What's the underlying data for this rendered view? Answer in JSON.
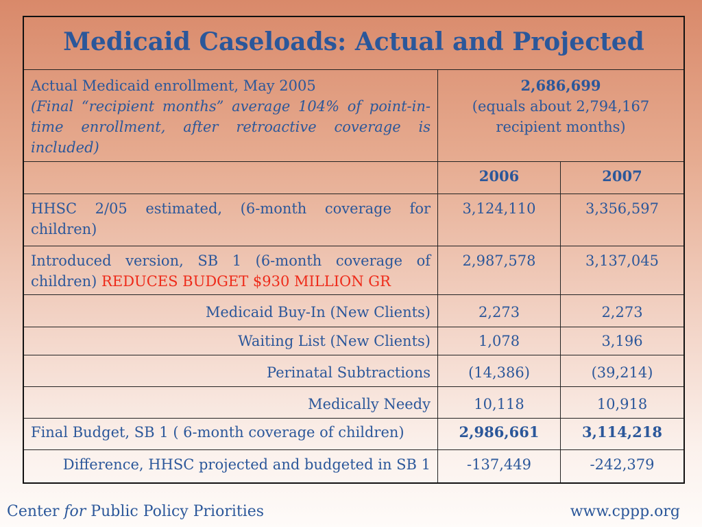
{
  "title": "Medicaid Caseloads: Actual and Projected",
  "actual": {
    "label": "Actual Medicaid enrollment, May 2005",
    "note": "(Final “recipient months” average 104% of point-in-time enrollment, after retroactive coverage is included)",
    "value": "2,686,699",
    "value_note": "(equals about 2,794,167 recipient months)"
  },
  "years": [
    "2006",
    "2007"
  ],
  "rows": [
    {
      "label": "HHSC 2/05 estimated, (6-month coverage for children)",
      "v2006": "3,124,110",
      "v2007": "3,356,597"
    },
    {
      "label": "Introduced version, SB 1 (6-month coverage of children)",
      "label_alert": "REDUCES BUDGET $930 MILLION GR",
      "v2006": "2,987,578",
      "v2007": "3,137,045"
    },
    {
      "label": "Medicaid Buy-In (New Clients)",
      "v2006": "2,273",
      "v2007": "2,273"
    },
    {
      "label": "Waiting List (New Clients)",
      "v2006": "1,078",
      "v2007": "3,196"
    },
    {
      "label": "Perinatal Subtractions",
      "v2006": "(14,386)",
      "v2007": "(39,214)"
    },
    {
      "label": "Medically Needy",
      "v2006": "10,118",
      "v2007": "10,918"
    },
    {
      "label": "Final Budget, SB 1 ( 6-month coverage of children)",
      "v2006": "2,986,661",
      "v2007": "3,114,218"
    },
    {
      "label": "Difference, HHSC projected and budgeted in SB 1",
      "v2006": "-137,449",
      "v2007": "-242,379"
    }
  ],
  "footer": {
    "org_pre": "Center ",
    "org_for": "for",
    "org_post": " Public Policy Priorities",
    "url": "www.cppp.org"
  },
  "colors": {
    "text": "#2b579a",
    "alert": "#ee2b1a",
    "border": "#111111"
  }
}
